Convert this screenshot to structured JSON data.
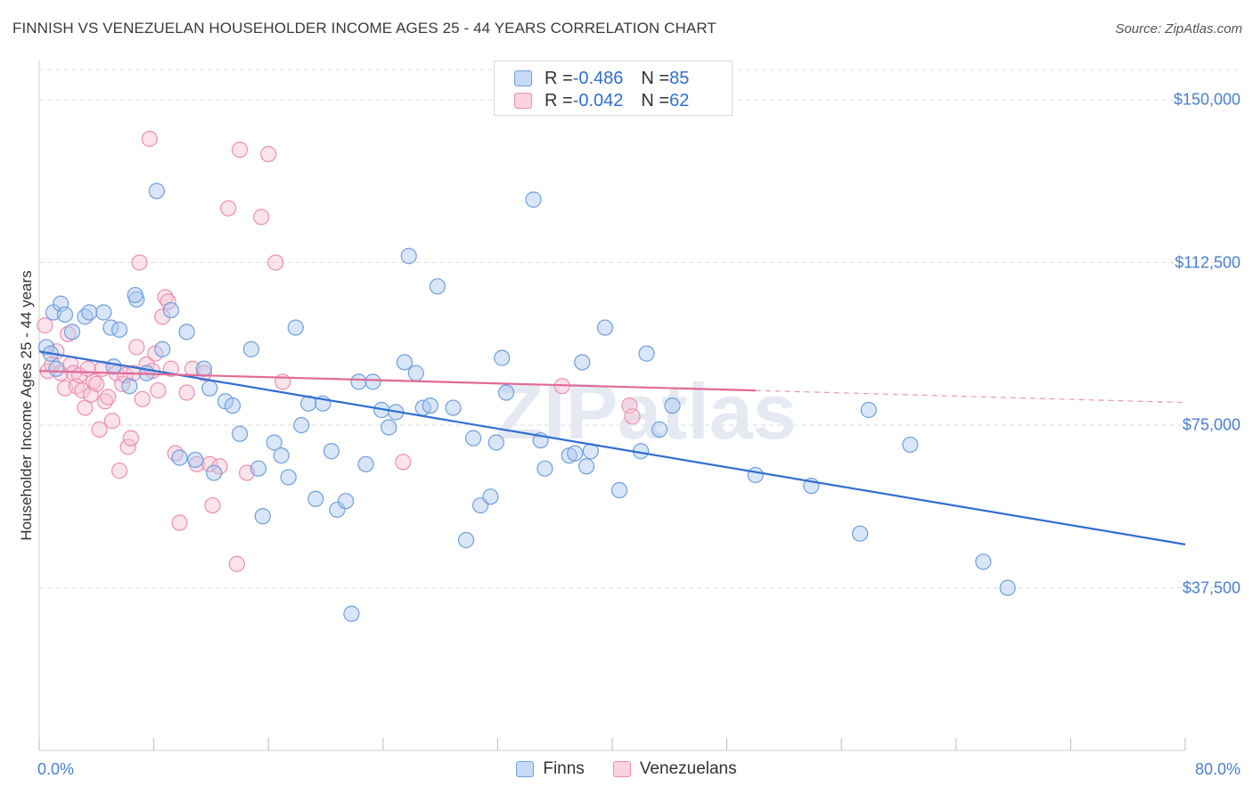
{
  "title": "FINNISH VS VENEZUELAN HOUSEHOLDER INCOME AGES 25 - 44 YEARS CORRELATION CHART",
  "source": "Source: ZipAtlas.com",
  "watermark": "ZIPatlas",
  "legend_box": {
    "rows": [
      {
        "r_label": "R = ",
        "r_value": "-0.486",
        "n_label": "N = ",
        "n_value": "85"
      },
      {
        "r_label": "R = ",
        "r_value": "-0.042",
        "n_label": "N = ",
        "n_value": "62"
      }
    ]
  },
  "colors": {
    "finns_fill": "#aac8f0",
    "finns_stroke": "#6f9fdc",
    "finns_line": "#2f6fd0",
    "venez_fill": "#f7c0d2",
    "venez_stroke": "#ec8fb0",
    "venez_line": "#e26a95",
    "tick_text": "#4a7fd0",
    "grid": "#dedede"
  },
  "chart_data": {
    "type": "scatter",
    "title": "FINNISH VS VENEZUELAN HOUSEHOLDER INCOME AGES 25 - 44 YEARS CORRELATION CHART",
    "xlabel": "",
    "ylabel": "Householder Income Ages 25 - 44 years",
    "x_tick_labels": [
      "0.0%",
      "80.0%"
    ],
    "y_tick_labels": [
      "$150,000",
      "$112,500",
      "$75,000",
      "$37,500"
    ],
    "y_ticks": [
      150000,
      112500,
      75000,
      37500
    ],
    "xlim": [
      0,
      80
    ],
    "ylim": [
      0,
      157000
    ],
    "grid": true,
    "legend_position": "bottom",
    "series": [
      {
        "name": "Finns",
        "points": [
          [
            0.5,
            93000
          ],
          [
            1.0,
            101000
          ],
          [
            1.5,
            103000
          ],
          [
            1.8,
            100500
          ],
          [
            2.3,
            96500
          ],
          [
            3.2,
            100000
          ],
          [
            3.5,
            101000
          ],
          [
            4.5,
            101000
          ],
          [
            5.0,
            97500
          ],
          [
            5.6,
            97000
          ],
          [
            6.3,
            84000
          ],
          [
            6.8,
            104000
          ],
          [
            6.7,
            105000
          ],
          [
            7.5,
            87000
          ],
          [
            8.2,
            129000
          ],
          [
            8.6,
            92500
          ],
          [
            9.2,
            101500
          ],
          [
            9.8,
            67500
          ],
          [
            10.3,
            96500
          ],
          [
            10.9,
            67000
          ],
          [
            11.5,
            88000
          ],
          [
            11.9,
            83500
          ],
          [
            12.2,
            64000
          ],
          [
            13.0,
            80500
          ],
          [
            13.5,
            79500
          ],
          [
            14.0,
            73000
          ],
          [
            14.8,
            92500
          ],
          [
            15.3,
            65000
          ],
          [
            15.6,
            54000
          ],
          [
            16.4,
            71000
          ],
          [
            16.9,
            68000
          ],
          [
            17.4,
            63000
          ],
          [
            17.9,
            97500
          ],
          [
            18.3,
            75000
          ],
          [
            18.8,
            80000
          ],
          [
            19.3,
            58000
          ],
          [
            19.8,
            80000
          ],
          [
            20.4,
            69000
          ],
          [
            20.8,
            55500
          ],
          [
            21.4,
            57500
          ],
          [
            21.8,
            31500
          ],
          [
            22.3,
            85000
          ],
          [
            22.8,
            66000
          ],
          [
            23.3,
            85000
          ],
          [
            23.9,
            78500
          ],
          [
            24.4,
            74500
          ],
          [
            24.9,
            78000
          ],
          [
            25.5,
            89500
          ],
          [
            25.8,
            114000
          ],
          [
            26.3,
            87000
          ],
          [
            26.8,
            79000
          ],
          [
            27.3,
            79500
          ],
          [
            27.8,
            107000
          ],
          [
            28.9,
            79000
          ],
          [
            29.8,
            48500
          ],
          [
            30.3,
            72000
          ],
          [
            30.8,
            56500
          ],
          [
            31.5,
            58500
          ],
          [
            31.9,
            71000
          ],
          [
            32.3,
            90500
          ],
          [
            32.6,
            82500
          ],
          [
            34.5,
            127000
          ],
          [
            35.0,
            71500
          ],
          [
            35.3,
            65000
          ],
          [
            37.0,
            68000
          ],
          [
            37.4,
            68500
          ],
          [
            37.9,
            89500
          ],
          [
            38.2,
            65500
          ],
          [
            38.5,
            69000
          ],
          [
            39.5,
            97500
          ],
          [
            40.5,
            60000
          ],
          [
            42.0,
            69000
          ],
          [
            42.4,
            91500
          ],
          [
            43.3,
            74000
          ],
          [
            44.2,
            79500
          ],
          [
            50.0,
            63500
          ],
          [
            53.9,
            61000
          ],
          [
            57.3,
            50000
          ],
          [
            57.9,
            78500
          ],
          [
            60.8,
            70500
          ],
          [
            65.9,
            43500
          ],
          [
            67.6,
            37500
          ],
          [
            0.8,
            91500
          ],
          [
            1.2,
            88000
          ],
          [
            5.2,
            88500
          ]
        ]
      },
      {
        "name": "Venezuelans",
        "points": [
          [
            0.4,
            98000
          ],
          [
            0.6,
            87500
          ],
          [
            0.9,
            89000
          ],
          [
            1.2,
            92000
          ],
          [
            1.5,
            87000
          ],
          [
            1.8,
            83500
          ],
          [
            2.0,
            96000
          ],
          [
            2.2,
            89000
          ],
          [
            2.4,
            87000
          ],
          [
            2.6,
            84000
          ],
          [
            2.8,
            86500
          ],
          [
            3.0,
            83000
          ],
          [
            3.2,
            79000
          ],
          [
            3.4,
            88000
          ],
          [
            3.6,
            82000
          ],
          [
            3.8,
            85000
          ],
          [
            4.0,
            84500
          ],
          [
            4.2,
            74000
          ],
          [
            4.4,
            88000
          ],
          [
            4.6,
            80500
          ],
          [
            4.8,
            81500
          ],
          [
            5.1,
            76000
          ],
          [
            5.4,
            87000
          ],
          [
            5.6,
            64500
          ],
          [
            5.8,
            84500
          ],
          [
            6.0,
            86500
          ],
          [
            6.2,
            70000
          ],
          [
            6.4,
            72000
          ],
          [
            6.6,
            87000
          ],
          [
            6.8,
            93000
          ],
          [
            7.0,
            112500
          ],
          [
            7.2,
            81000
          ],
          [
            7.5,
            89000
          ],
          [
            7.7,
            141000
          ],
          [
            7.9,
            87500
          ],
          [
            8.1,
            91500
          ],
          [
            8.3,
            83000
          ],
          [
            8.6,
            100000
          ],
          [
            8.8,
            104500
          ],
          [
            9.0,
            103500
          ],
          [
            9.2,
            88000
          ],
          [
            9.5,
            68500
          ],
          [
            9.8,
            52500
          ],
          [
            10.3,
            82500
          ],
          [
            10.7,
            88000
          ],
          [
            11.0,
            66000
          ],
          [
            11.5,
            87000
          ],
          [
            11.9,
            66000
          ],
          [
            12.1,
            56500
          ],
          [
            12.6,
            65500
          ],
          [
            13.2,
            125000
          ],
          [
            13.8,
            43000
          ],
          [
            14.0,
            138500
          ],
          [
            14.5,
            64000
          ],
          [
            15.5,
            123000
          ],
          [
            16.0,
            137500
          ],
          [
            16.5,
            112500
          ],
          [
            17.0,
            85000
          ],
          [
            25.4,
            66500
          ],
          [
            36.5,
            84000
          ],
          [
            41.2,
            79500
          ],
          [
            41.4,
            77000
          ]
        ]
      }
    ],
    "trend_lines": [
      {
        "series": "Finns",
        "x": [
          0,
          80
        ],
        "y": [
          92000,
          47500
        ]
      },
      {
        "series": "Venezuelans",
        "x": [
          0,
          50
        ],
        "y": [
          87500,
          83000
        ],
        "dashed_extension": {
          "x": [
            50,
            80
          ],
          "y": [
            83000,
            80200
          ]
        }
      }
    ]
  }
}
